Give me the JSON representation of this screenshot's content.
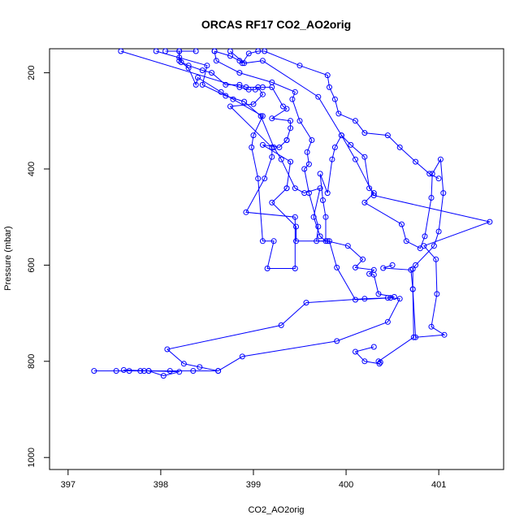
{
  "chart_data": {
    "type": "line",
    "title": "ORCAS RF17 CO2_AO2orig",
    "xlabel": "CO2_AO2orig",
    "ylabel": "Pressure (mbar)",
    "xlim": [
      396.8,
      401.7
    ],
    "ylim": [
      1025,
      150
    ],
    "y_reversed": true,
    "grid": false,
    "x_ticks": [
      397,
      398,
      399,
      400,
      401
    ],
    "y_ticks": [
      200,
      400,
      600,
      800,
      1000
    ],
    "series": [
      {
        "points": [
          [
            397.28,
            820
          ],
          [
            397.52,
            820
          ],
          [
            397.66,
            820
          ],
          [
            397.78,
            820
          ],
          [
            397.82,
            820
          ],
          [
            397.87,
            820
          ],
          [
            398.1,
            820
          ],
          [
            398.35,
            820
          ],
          [
            398.62,
            820
          ],
          [
            398.42,
            812
          ],
          [
            398.25,
            805
          ],
          [
            398.07,
            775
          ],
          [
            399.3,
            725
          ],
          [
            399.57,
            678
          ],
          [
            400.2,
            670
          ],
          [
            400.45,
            668
          ],
          [
            400.52,
            666
          ],
          [
            400.35,
            660
          ],
          [
            400.3,
            620
          ],
          [
            400.25,
            618
          ],
          [
            400.3,
            610
          ],
          [
            400.1,
            605
          ],
          [
            400.18,
            588
          ],
          [
            400.02,
            560
          ],
          [
            399.8,
            550
          ],
          [
            399.46,
            550
          ],
          [
            399.46,
            520
          ],
          [
            399.2,
            470
          ],
          [
            399.36,
            440
          ],
          [
            399.36,
            440
          ],
          [
            399.4,
            385
          ],
          [
            399.1,
            350
          ],
          [
            399.28,
            355
          ],
          [
            399.36,
            340
          ],
          [
            399.36,
            340
          ],
          [
            399.4,
            315
          ],
          [
            399.4,
            300
          ],
          [
            399.2,
            295
          ],
          [
            399.36,
            275
          ],
          [
            399.32,
            270
          ],
          [
            399.2,
            230
          ],
          [
            399.1,
            230
          ],
          [
            398.92,
            230
          ],
          [
            398.85,
            225
          ],
          [
            398.7,
            225
          ],
          [
            398.55,
            200
          ],
          [
            398.45,
            195
          ],
          [
            398.3,
            185
          ],
          [
            398.22,
            178
          ],
          [
            398.2,
            168
          ],
          [
            398.2,
            155
          ],
          [
            398.05,
            155
          ]
        ]
      },
      {
        "points": [
          [
            397.95,
            155
          ],
          [
            398.5,
            185
          ],
          [
            398.45,
            225
          ],
          [
            398.7,
            248
          ],
          [
            398.9,
            260
          ],
          [
            399.08,
            290
          ],
          [
            399.22,
            355
          ],
          [
            399.3,
            380
          ],
          [
            399.45,
            440
          ],
          [
            399.55,
            450
          ],
          [
            399.72,
            440
          ],
          [
            399.65,
            500
          ],
          [
            399.72,
            540
          ],
          [
            399.78,
            550
          ],
          [
            399.78,
            500
          ],
          [
            399.75,
            465
          ],
          [
            399.72,
            410
          ],
          [
            399.8,
            450
          ],
          [
            399.85,
            380
          ],
          [
            399.88,
            355
          ],
          [
            399.95,
            330
          ],
          [
            400.05,
            350
          ],
          [
            400.2,
            375
          ],
          [
            400.25,
            440
          ],
          [
            400.3,
            450
          ],
          [
            400.2,
            470
          ],
          [
            400.6,
            515
          ],
          [
            400.65,
            550
          ],
          [
            400.8,
            565
          ],
          [
            400.85,
            540
          ],
          [
            400.92,
            460
          ],
          [
            400.93,
            410
          ],
          [
            401.02,
            380
          ],
          [
            401.05,
            450
          ],
          [
            401.0,
            530
          ],
          [
            400.95,
            560
          ],
          [
            400.75,
            600
          ],
          [
            400.72,
            608
          ],
          [
            400.72,
            650
          ],
          [
            400.75,
            750
          ],
          [
            401.06,
            745
          ],
          [
            400.92,
            728
          ],
          [
            400.98,
            660
          ],
          [
            400.97,
            588
          ],
          [
            400.84,
            560
          ],
          [
            401.55,
            510
          ],
          [
            400.3,
            455
          ],
          [
            400.1,
            380
          ],
          [
            399.95,
            330
          ],
          [
            399.7,
            250
          ],
          [
            399.1,
            175
          ],
          [
            398.9,
            180
          ],
          [
            398.75,
            155
          ]
        ]
      },
      {
        "points": [
          [
            397.57,
            155
          ],
          [
            398.85,
            230
          ],
          [
            398.95,
            235
          ],
          [
            399.02,
            235
          ],
          [
            399.05,
            230
          ],
          [
            399.1,
            245
          ],
          [
            399.0,
            265
          ],
          [
            398.75,
            270
          ],
          [
            399.2,
            355
          ],
          [
            399.2,
            375
          ],
          [
            399.12,
            420
          ],
          [
            398.92,
            490
          ],
          [
            399.45,
            500
          ],
          [
            399.45,
            607
          ],
          [
            399.15,
            607
          ],
          [
            399.22,
            550
          ],
          [
            399.1,
            550
          ],
          [
            399.05,
            420
          ],
          [
            398.98,
            355
          ],
          [
            399.0,
            330
          ],
          [
            399.1,
            290
          ],
          [
            398.78,
            255
          ],
          [
            398.65,
            240
          ],
          [
            398.4,
            210
          ],
          [
            398.38,
            225
          ],
          [
            398.3,
            190
          ],
          [
            398.2,
            175
          ],
          [
            398.2,
            155
          ],
          [
            398.38,
            155
          ]
        ]
      },
      {
        "points": [
          [
            398.58,
            155
          ],
          [
            398.75,
            165
          ],
          [
            398.85,
            175
          ],
          [
            398.88,
            180
          ],
          [
            398.95,
            160
          ],
          [
            399.05,
            155
          ],
          [
            399.12,
            155
          ],
          [
            399.5,
            185
          ],
          [
            399.8,
            205
          ],
          [
            399.82,
            230
          ],
          [
            399.88,
            255
          ],
          [
            399.92,
            285
          ],
          [
            400.1,
            300
          ],
          [
            400.2,
            325
          ],
          [
            400.45,
            330
          ],
          [
            400.58,
            355
          ],
          [
            400.75,
            385
          ],
          [
            400.9,
            410
          ],
          [
            401.0,
            420
          ]
        ]
      },
      {
        "points": [
          [
            398.62,
            820
          ],
          [
            398.88,
            790
          ],
          [
            399.9,
            758
          ],
          [
            400.45,
            718
          ],
          [
            400.58,
            670
          ],
          [
            400.48,
            668
          ],
          [
            400.1,
            672
          ],
          [
            399.9,
            605
          ],
          [
            399.82,
            550
          ],
          [
            399.68,
            550
          ],
          [
            399.7,
            520
          ],
          [
            399.6,
            450
          ],
          [
            399.55,
            400
          ],
          [
            399.6,
            390
          ],
          [
            399.58,
            365
          ],
          [
            399.63,
            340
          ],
          [
            399.5,
            300
          ],
          [
            399.42,
            255
          ],
          [
            399.45,
            240
          ],
          [
            399.2,
            220
          ],
          [
            398.85,
            200
          ],
          [
            398.6,
            175
          ],
          [
            398.58,
            155
          ]
        ]
      },
      {
        "points": [
          [
            400.37,
            802
          ],
          [
            400.35,
            800
          ],
          [
            400.73,
            750
          ],
          [
            400.72,
            650
          ],
          [
            400.7,
            610
          ],
          [
            400.4,
            606
          ],
          [
            400.5,
            600
          ]
        ]
      },
      {
        "points": [
          [
            397.87,
            820
          ],
          [
            398.03,
            830
          ],
          [
            398.2,
            822
          ],
          [
            397.6,
            818
          ]
        ]
      },
      {
        "points": [
          [
            400.36,
            805
          ],
          [
            400.2,
            800
          ],
          [
            400.1,
            780
          ],
          [
            400.3,
            770
          ]
        ]
      }
    ]
  }
}
